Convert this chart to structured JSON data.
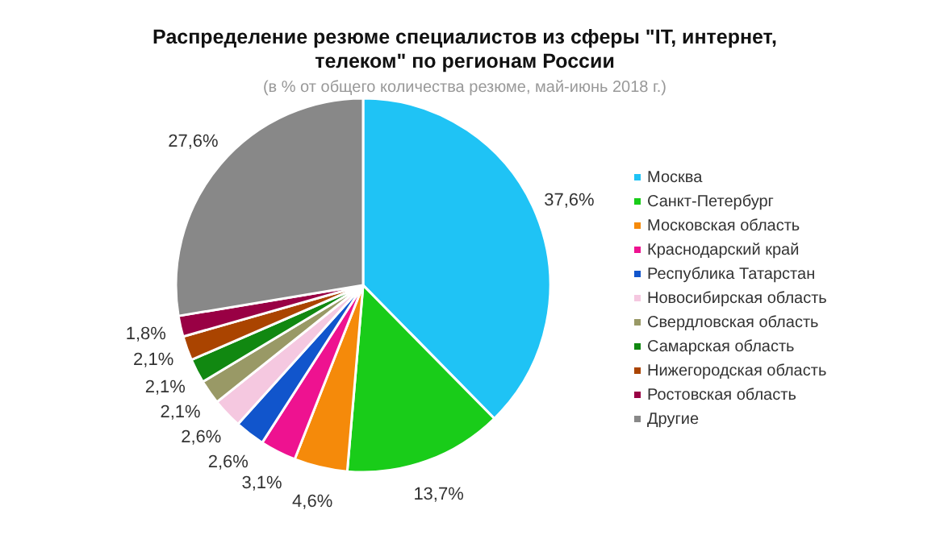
{
  "chart_data": {
    "type": "pie",
    "title": "Распределение резюме специалистов из сферы \"IT, интернет, телеком\" по регионам России",
    "subtitle": "(в % от общего количества резюме, май-июнь 2018 г.)",
    "categories": [
      "Москва",
      "Санкт-Петербург",
      "Московская область",
      "Краснодарский край",
      "Республика Татарстан",
      "Новосибирская область",
      "Свердловская область",
      "Самарская область",
      "Нижегородская область",
      "Ростовская область",
      "Другие"
    ],
    "values": [
      37.6,
      13.7,
      4.6,
      3.1,
      2.6,
      2.6,
      2.1,
      2.1,
      2.1,
      1.8,
      27.6
    ],
    "value_labels": [
      "37,6%",
      "13,7%",
      "4,6%",
      "3,1%",
      "2,6%",
      "2,6%",
      "2,1%",
      "2,1%",
      "2,1%",
      "1,8%",
      "27,6%"
    ],
    "colors": [
      "#1fc3f5",
      "#19cc19",
      "#f58a0a",
      "#ee1290",
      "#1155cc",
      "#f5c8e0",
      "#999966",
      "#118811",
      "#aa4400",
      "#990044",
      "#888888"
    ],
    "legend": "right"
  }
}
